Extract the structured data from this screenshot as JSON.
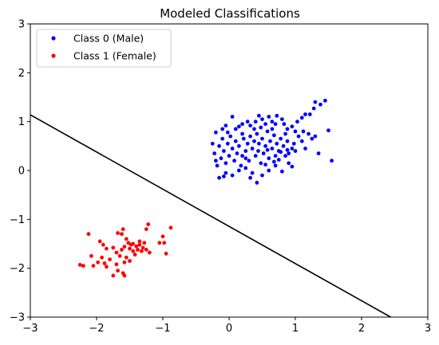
{
  "chart_data": {
    "type": "scatter",
    "title": "Modeled Classifications",
    "xlabel": "",
    "ylabel": "",
    "xlim": [
      -3,
      3
    ],
    "ylim": [
      -3,
      3
    ],
    "xticks": [
      -3,
      -2,
      -1,
      0,
      1,
      2,
      3
    ],
    "yticks": [
      -3,
      -2,
      -1,
      0,
      1,
      2,
      3
    ],
    "xtick_labels": [
      "−3",
      "−2",
      "−1",
      "0",
      "1",
      "2",
      "3"
    ],
    "ytick_labels": [
      "−3",
      "−2",
      "−1",
      "0",
      "1",
      "2",
      "3"
    ],
    "grid": false,
    "legend_position": "top-left",
    "decision_boundary": {
      "color": "#000000",
      "points": [
        [
          -3,
          1.14
        ],
        [
          2.44,
          -3
        ]
      ]
    },
    "series": [
      {
        "name": "Class 0 (Male)",
        "color": "#0000ff",
        "points": [
          [
            1.45,
            1.43
          ],
          [
            1.38,
            1.35
          ],
          [
            1.3,
            1.4
          ],
          [
            1.28,
            1.27
          ],
          [
            1.22,
            1.15
          ],
          [
            1.15,
            1.15
          ],
          [
            1.1,
            1.08
          ],
          [
            1.03,
            1.0
          ],
          [
            1.12,
            0.8
          ],
          [
            0.95,
            0.9
          ],
          [
            0.88,
            0.85
          ],
          [
            0.83,
            0.95
          ],
          [
            0.8,
            1.05
          ],
          [
            0.72,
            1.12
          ],
          [
            0.7,
            0.95
          ],
          [
            0.65,
            1.0
          ],
          [
            0.6,
            1.1
          ],
          [
            0.55,
            0.95
          ],
          [
            0.5,
            1.05
          ],
          [
            0.45,
            1.12
          ],
          [
            0.4,
            1.0
          ],
          [
            0.38,
            0.85
          ],
          [
            0.32,
            0.92
          ],
          [
            0.28,
            1.0
          ],
          [
            0.2,
            0.95
          ],
          [
            0.15,
            0.9
          ],
          [
            0.05,
            1.1
          ],
          [
            -0.05,
            0.92
          ],
          [
            -0.1,
            0.85
          ],
          [
            -0.2,
            0.78
          ],
          [
            1.5,
            0.82
          ],
          [
            1.55,
            0.2
          ],
          [
            1.35,
            0.35
          ],
          [
            1.25,
            0.65
          ],
          [
            1.2,
            0.75
          ],
          [
            1.1,
            0.6
          ],
          [
            1.05,
            0.7
          ],
          [
            1.0,
            0.8
          ],
          [
            0.98,
            0.55
          ],
          [
            0.95,
            0.45
          ],
          [
            0.9,
            0.35
          ],
          [
            0.88,
            0.6
          ],
          [
            0.85,
            0.75
          ],
          [
            0.82,
            0.5
          ],
          [
            0.78,
            0.65
          ],
          [
            0.75,
            0.4
          ],
          [
            0.72,
            0.55
          ],
          [
            0.7,
            0.3
          ],
          [
            0.68,
            0.72
          ],
          [
            0.65,
            0.45
          ],
          [
            0.62,
            0.6
          ],
          [
            0.6,
            0.25
          ],
          [
            0.58,
            0.8
          ],
          [
            0.55,
            0.5
          ],
          [
            0.52,
            0.35
          ],
          [
            0.5,
            0.65
          ],
          [
            0.48,
            0.15
          ],
          [
            0.45,
            0.55
          ],
          [
            0.42,
            0.75
          ],
          [
            0.4,
            0.3
          ],
          [
            0.38,
            0.6
          ],
          [
            0.35,
            0.45
          ],
          [
            0.32,
            0.7
          ],
          [
            0.3,
            0.2
          ],
          [
            0.28,
            0.55
          ],
          [
            0.25,
            0.4
          ],
          [
            0.22,
            0.65
          ],
          [
            0.2,
            0.3
          ],
          [
            0.18,
            0.1
          ],
          [
            0.15,
            0.5
          ],
          [
            0.12,
            0.35
          ],
          [
            0.1,
            0.6
          ],
          [
            0.08,
            0.2
          ],
          [
            0.05,
            0.45
          ],
          [
            0.02,
            0.7
          ],
          [
            0.0,
            0.3
          ],
          [
            -0.02,
            0.55
          ],
          [
            -0.05,
            0.15
          ],
          [
            -0.08,
            0.4
          ],
          [
            -0.1,
            0.65
          ],
          [
            -0.12,
            0.25
          ],
          [
            -0.15,
            0.5
          ],
          [
            -0.18,
            0.1
          ],
          [
            -0.22,
            0.35
          ],
          [
            -0.25,
            0.55
          ],
          [
            -0.05,
            -0.05
          ],
          [
            0.05,
            -0.1
          ],
          [
            0.15,
            0.0
          ],
          [
            0.25,
            0.05
          ],
          [
            0.35,
            -0.05
          ],
          [
            0.42,
            -0.25
          ],
          [
            0.5,
            -0.1
          ],
          [
            0.6,
            0.0
          ],
          [
            0.7,
            0.1
          ],
          [
            0.8,
            -0.02
          ],
          [
            0.9,
            0.15
          ],
          [
            0.95,
            0.08
          ],
          [
            -0.15,
            -0.15
          ],
          [
            -0.08,
            -0.12
          ],
          [
            0.32,
            -0.15
          ],
          [
            0.55,
            0.12
          ],
          [
            0.75,
            0.22
          ],
          [
            0.85,
            0.3
          ],
          [
            1.0,
            0.4
          ],
          [
            1.15,
            0.45
          ],
          [
            1.3,
            0.7
          ],
          [
            0.2,
            0.75
          ],
          [
            0.1,
            0.85
          ],
          [
            -0.02,
            0.78
          ],
          [
            0.65,
            0.85
          ],
          [
            0.48,
            0.88
          ],
          [
            0.88,
            0.42
          ],
          [
            0.78,
            0.38
          ],
          [
            0.68,
            0.18
          ],
          [
            0.25,
            0.25
          ],
          [
            -0.2,
            0.2
          ],
          [
            0.58,
            0.42
          ],
          [
            0.44,
            0.4
          ]
        ]
      },
      {
        "name": "Class 1 (Female)",
        "color": "#ff0000",
        "points": [
          [
            -0.88,
            -1.17
          ],
          [
            -1.22,
            -1.1
          ],
          [
            -1.25,
            -1.2
          ],
          [
            -1.6,
            -1.2
          ],
          [
            -1.62,
            -1.3
          ],
          [
            -1.68,
            -1.28
          ],
          [
            -1.0,
            -1.35
          ],
          [
            -1.05,
            -1.48
          ],
          [
            -0.98,
            -1.48
          ],
          [
            -1.95,
            -1.45
          ],
          [
            -1.9,
            -1.52
          ],
          [
            -1.85,
            -1.6
          ],
          [
            -2.12,
            -1.3
          ],
          [
            -1.55,
            -1.4
          ],
          [
            -1.52,
            -1.48
          ],
          [
            -1.45,
            -1.5
          ],
          [
            -1.4,
            -1.55
          ],
          [
            -1.35,
            -1.52
          ],
          [
            -1.3,
            -1.58
          ],
          [
            -1.25,
            -1.62
          ],
          [
            -1.5,
            -1.6
          ],
          [
            -1.58,
            -1.56
          ],
          [
            -1.62,
            -1.62
          ],
          [
            -1.7,
            -1.68
          ],
          [
            -1.75,
            -1.58
          ],
          [
            -1.65,
            -1.75
          ],
          [
            -1.55,
            -1.78
          ],
          [
            -1.42,
            -1.72
          ],
          [
            -1.32,
            -1.65
          ],
          [
            -1.2,
            -1.68
          ],
          [
            -0.95,
            -1.7
          ],
          [
            -1.8,
            -1.82
          ],
          [
            -1.92,
            -1.78
          ],
          [
            -2.08,
            -1.75
          ],
          [
            -2.2,
            -1.95
          ],
          [
            -2.25,
            -1.93
          ],
          [
            -1.98,
            -1.88
          ],
          [
            -1.88,
            -1.9
          ],
          [
            -1.7,
            -1.92
          ],
          [
            -1.58,
            -1.88
          ],
          [
            -1.5,
            -1.85
          ],
          [
            -2.05,
            -1.95
          ],
          [
            -1.85,
            -1.97
          ],
          [
            -1.68,
            -2.05
          ],
          [
            -1.6,
            -2.1
          ],
          [
            -1.58,
            -2.15
          ],
          [
            -1.75,
            -2.15
          ],
          [
            -1.38,
            -1.62
          ],
          [
            -1.45,
            -1.65
          ],
          [
            -1.48,
            -1.52
          ],
          [
            -1.28,
            -1.48
          ],
          [
            -1.35,
            -1.45
          ]
        ]
      }
    ]
  }
}
